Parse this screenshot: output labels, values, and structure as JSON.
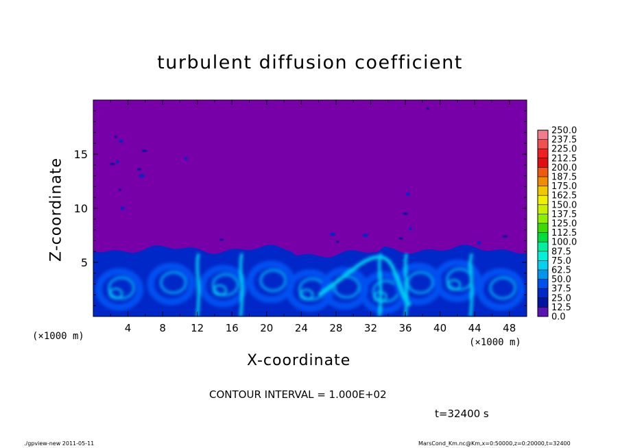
{
  "chart_data": {
    "type": "heatmap",
    "title": "turbulent diffusion coefficient",
    "xlabel": "X-coordinate",
    "ylabel": "Z-coordinate",
    "x_unit_label": "(×1000 m)",
    "xlim": [
      0,
      50
    ],
    "ylim": [
      0,
      20
    ],
    "x_ticks": [
      4,
      8,
      12,
      16,
      20,
      24,
      28,
      32,
      36,
      40,
      44,
      48
    ],
    "y_ticks": [
      5,
      10,
      15
    ],
    "x_tick_labels": [
      "4",
      "8",
      "12",
      "16",
      "20",
      "24",
      "28",
      "32",
      "36",
      "40",
      "44",
      "48"
    ],
    "y_tick_labels": [
      "5",
      "10",
      "15"
    ],
    "colorbar": {
      "levels": [
        250.0,
        237.5,
        225.0,
        212.5,
        200.0,
        187.5,
        175.0,
        162.5,
        150.0,
        137.5,
        125.0,
        112.5,
        100.0,
        87.5,
        75.0,
        62.5,
        50.0,
        37.5,
        25.0,
        12.5,
        0.0
      ],
      "level_labels": [
        "250.0",
        "237.5",
        "225.0",
        "212.5",
        "200.0",
        "187.5",
        "175.0",
        "162.5",
        "150.0",
        "137.5",
        "125.0",
        "112.5",
        "100.0",
        "87.5",
        "75.0",
        "62.5",
        "50.0",
        "37.5",
        "25.0",
        "12.5",
        "0.0"
      ],
      "colors": [
        "#f07c8c",
        "#f05050",
        "#f02020",
        "#e01010",
        "#f05a10",
        "#f08c00",
        "#f0c800",
        "#f0f000",
        "#c8f000",
        "#8cf000",
        "#3cdc00",
        "#00dc3c",
        "#00f0a0",
        "#00f0d8",
        "#00d2f0",
        "#0096f0",
        "#0050f0",
        "#0028c8",
        "#0014a0",
        "#5a14b4"
      ],
      "background": "#7800a8"
    },
    "background_value": 0.0,
    "turbulent_layer_top_z": 6.2,
    "contour_interval_text": "CONTOUR INTERVAL = 1.000E+02",
    "time_text": "t=32400 s"
  },
  "footer": {
    "left": "./gpview-new  2011-05-11",
    "right": "MarsCond_Km.nc@Km,x=0:50000,z=0:20000,t=32400"
  }
}
